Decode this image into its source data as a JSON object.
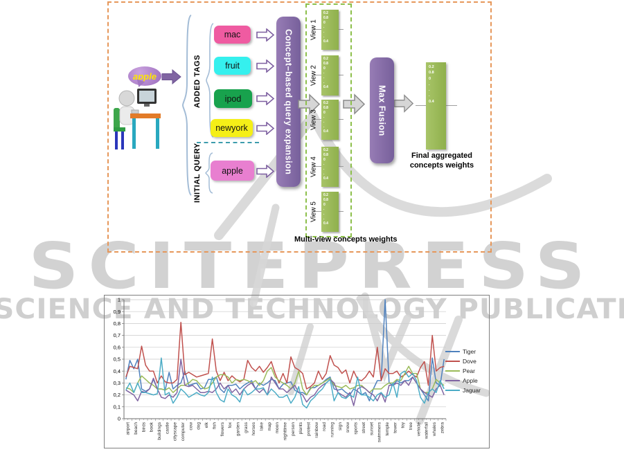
{
  "watermark": {
    "title": "SCITEPRESS",
    "subtitle": "SCIENCE AND TECHNOLOGY PUBLICATIONS",
    "color": "#d2d2d2"
  },
  "diagram": {
    "query_bubble": "apple",
    "added_tags_label": "ADDED TAGS",
    "initial_query_label": "INITIAL QUERY",
    "tags": [
      {
        "label": "mac",
        "color": "#ef5ba1"
      },
      {
        "label": "fruit",
        "color": "#35f0ee"
      },
      {
        "label": "ipod",
        "color": "#18a24d"
      },
      {
        "label": "newyork",
        "color": "#f5ef17"
      }
    ],
    "initial_tag": {
      "label": "apple",
      "color": "#e87fd0"
    },
    "expansion_box": "Concept–based query expansion",
    "fusion_box": "Max Fusion",
    "views": [
      "View 1",
      "View 2",
      "View 3",
      "View 4",
      "View 5"
    ],
    "weight_values": [
      "0.2",
      "0.8",
      "0",
      ".",
      ".",
      ".",
      "0.4"
    ],
    "multiview_caption": "Multi-view concepts weights",
    "final_caption": "Final  aggregated concepts weights",
    "box_color": "#8064a2",
    "bar_color": "#9bbb59",
    "border_color": "#e6975a",
    "views_border_color": "#8cbf4a"
  },
  "chart_data": {
    "type": "line",
    "title": "",
    "xlabel": "",
    "ylabel": "",
    "ylim": [
      0,
      1
    ],
    "grid": true,
    "legend_position": "right",
    "points_per_label": 2,
    "y_ticks": [
      "0",
      "0,1",
      "0,2",
      "0,3",
      "0,4",
      "0,5",
      "0,6",
      "0,7",
      "0,8",
      "0,9",
      "1"
    ],
    "x_labels": [
      "airport",
      "beach",
      "birds",
      "book",
      "buildings",
      "castle",
      "cityscape",
      "computer",
      "cow",
      "dog",
      "elk",
      "fish",
      "flowers",
      "fox",
      "garden",
      "grass",
      "horses",
      "lake",
      "map",
      "moon",
      "nighttime",
      "person",
      "plants",
      "protest",
      "rainbow",
      "road",
      "running",
      "sign",
      "snow",
      "sports",
      "street",
      "sunset",
      "swimmers",
      "temple",
      "tower",
      "toy",
      "tree",
      "vehicle",
      "waterfall",
      "whales",
      "zebra"
    ],
    "series": [
      {
        "name": "Tiger",
        "color": "#4f81bd",
        "values": [
          0.33,
          0.49,
          0.42,
          0.5,
          0.25,
          0.23,
          0.25,
          0.33,
          0.25,
          0.25,
          0.24,
          0.39,
          0.25,
          0.28,
          0.3,
          0.4,
          0.28,
          0.29,
          0.3,
          0.25,
          0.26,
          0.33,
          0.33,
          0.35,
          0.25,
          0.22,
          0.28,
          0.28,
          0.29,
          0.25,
          0.28,
          0.3,
          0.32,
          0.25,
          0.3,
          0.28,
          0.3,
          0.33,
          0.32,
          0.25,
          0.29,
          0.3,
          0.31,
          0.24,
          0.22,
          0.22,
          0.2,
          0.26,
          0.26,
          0.28,
          0.3,
          0.33,
          0.35,
          0.25,
          0.24,
          0.25,
          0.22,
          0.2,
          0.25,
          0.23,
          0.2,
          0.22,
          0.15,
          0.25,
          0.32,
          0.32,
          1.0,
          0.3,
          0.28,
          0.32,
          0.3,
          0.32,
          0.32,
          0.35,
          0.3,
          0.25,
          0.2,
          0.15,
          0.51,
          0.3,
          0.28,
          0.5
        ]
      },
      {
        "name": "Dove",
        "color": "#c0504d",
        "values": [
          0.35,
          0.44,
          0.43,
          0.42,
          0.61,
          0.45,
          0.4,
          0.4,
          0.3,
          0.36,
          0.31,
          0.3,
          0.3,
          0.33,
          0.81,
          0.37,
          0.39,
          0.37,
          0.35,
          0.36,
          0.37,
          0.38,
          0.67,
          0.4,
          0.32,
          0.39,
          0.32,
          0.36,
          0.33,
          0.31,
          0.33,
          0.49,
          0.43,
          0.4,
          0.44,
          0.39,
          0.43,
          0.48,
          0.38,
          0.3,
          0.38,
          0.3,
          0.52,
          0.43,
          0.41,
          0.38,
          0.25,
          0.27,
          0.3,
          0.4,
          0.33,
          0.38,
          0.53,
          0.45,
          0.43,
          0.38,
          0.41,
          0.3,
          0.4,
          0.33,
          0.32,
          0.35,
          0.4,
          0.35,
          0.6,
          0.32,
          0.42,
          0.38,
          0.38,
          0.4,
          0.35,
          0.37,
          0.4,
          0.37,
          0.35,
          0.43,
          0.48,
          0.28,
          0.7,
          0.4,
          0.43,
          0.44
        ]
      },
      {
        "name": "Pear",
        "color": "#9bbb59",
        "values": [
          0.26,
          0.25,
          0.22,
          0.3,
          0.36,
          0.33,
          0.3,
          0.28,
          0.25,
          0.25,
          0.24,
          0.26,
          0.22,
          0.25,
          0.28,
          0.28,
          0.3,
          0.33,
          0.32,
          0.28,
          0.25,
          0.26,
          0.3,
          0.35,
          0.37,
          0.37,
          0.35,
          0.3,
          0.33,
          0.32,
          0.33,
          0.32,
          0.3,
          0.32,
          0.28,
          0.32,
          0.4,
          0.43,
          0.35,
          0.32,
          0.3,
          0.28,
          0.25,
          0.3,
          0.4,
          0.25,
          0.2,
          0.25,
          0.28,
          0.28,
          0.3,
          0.32,
          0.34,
          0.28,
          0.27,
          0.26,
          0.28,
          0.25,
          0.26,
          0.28,
          0.28,
          0.25,
          0.22,
          0.25,
          0.25,
          0.25,
          0.28,
          0.3,
          0.3,
          0.33,
          0.32,
          0.38,
          0.44,
          0.38,
          0.38,
          0.25,
          0.22,
          0.22,
          0.25,
          0.33,
          0.3,
          0.28
        ]
      },
      {
        "name": "Apple",
        "color": "#8064a2",
        "values": [
          0.24,
          0.22,
          0.2,
          0.15,
          0.23,
          0.22,
          0.25,
          0.34,
          0.25,
          0.18,
          0.17,
          0.2,
          0.18,
          0.22,
          0.5,
          0.28,
          0.27,
          0.28,
          0.25,
          0.22,
          0.22,
          0.23,
          0.22,
          0.25,
          0.3,
          0.25,
          0.28,
          0.22,
          0.25,
          0.2,
          0.25,
          0.28,
          0.3,
          0.25,
          0.22,
          0.25,
          0.2,
          0.35,
          0.3,
          0.25,
          0.25,
          0.22,
          0.25,
          0.28,
          0.22,
          0.2,
          0.14,
          0.18,
          0.2,
          0.25,
          0.28,
          0.3,
          0.33,
          0.3,
          0.22,
          0.2,
          0.18,
          0.22,
          0.11,
          0.25,
          0.27,
          0.25,
          0.22,
          0.2,
          0.15,
          0.22,
          0.14,
          0.28,
          0.28,
          0.3,
          0.28,
          0.32,
          0.28,
          0.35,
          0.3,
          0.25,
          0.22,
          0.2,
          0.18,
          0.25,
          0.28,
          0.2
        ]
      },
      {
        "name": "Jaguar",
        "color": "#4bacc6",
        "values": [
          0.24,
          0.3,
          0.22,
          0.3,
          0.22,
          0.22,
          0.21,
          0.2,
          0.21,
          0.51,
          0.2,
          0.22,
          0.13,
          0.18,
          0.25,
          0.22,
          0.18,
          0.2,
          0.22,
          0.2,
          0.19,
          0.22,
          0.35,
          0.22,
          0.16,
          0.14,
          0.25,
          0.2,
          0.18,
          0.14,
          0.25,
          0.2,
          0.22,
          0.25,
          0.25,
          0.26,
          0.2,
          0.25,
          0.22,
          0.18,
          0.18,
          0.2,
          0.13,
          0.18,
          0.27,
          0.12,
          0.09,
          0.15,
          0.18,
          0.22,
          0.25,
          0.3,
          0.33,
          0.15,
          0.22,
          0.18,
          0.17,
          0.2,
          0.18,
          0.35,
          0.2,
          0.2,
          0.18,
          0.15,
          0.2,
          0.22,
          0.18,
          0.2,
          0.3,
          0.18,
          0.38,
          0.4,
          0.35,
          0.38,
          0.32,
          0.18,
          0.13,
          0.22,
          0.25,
          0.22,
          0.32,
          0.25
        ]
      }
    ]
  }
}
